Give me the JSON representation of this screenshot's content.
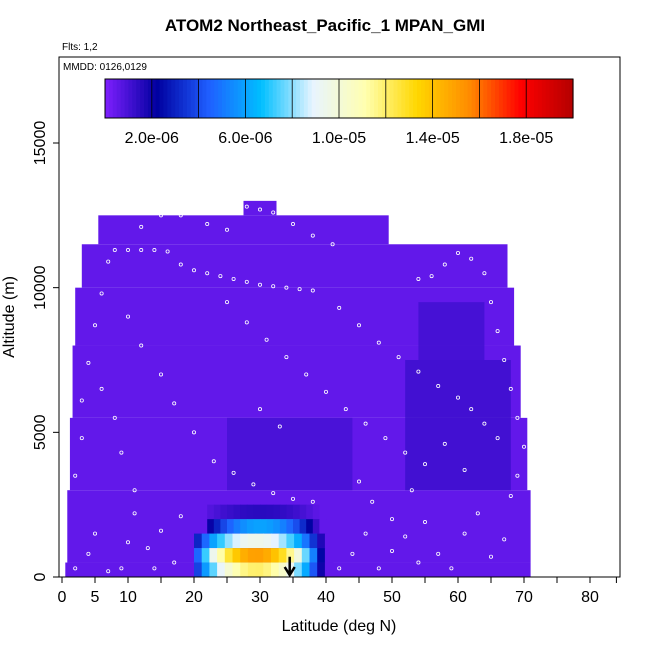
{
  "title": "ATOM2 Northeast_Pacific_1 MPAN_GMI",
  "flights_label": "Flts: 1,2",
  "dates_label": "MMDD: 0126,0129",
  "chart_data": {
    "type": "heatmap",
    "title": "ATOM2 Northeast_Pacific_1 MPAN_GMI",
    "xlabel": "Latitude (deg N)",
    "ylabel": "Altitude (m)",
    "xlim": [
      0,
      84
    ],
    "ylim": [
      0,
      17500
    ],
    "x_ticks": [
      0,
      5,
      10,
      20,
      30,
      40,
      50,
      60,
      70,
      80
    ],
    "y_ticks": [
      0,
      5000,
      10000,
      15000
    ],
    "y_tick_labels": [
      "0",
      "5000",
      "10000",
      "15000"
    ],
    "colorbar": {
      "colors": [
        "#7f1fff",
        "#0000a0",
        "#1f5fff",
        "#00bfff",
        "#e8f4ff",
        "#ffffb0",
        "#ffd700",
        "#ff8c00",
        "#ff0000",
        "#b40000"
      ],
      "min": 0,
      "max": 2e-05,
      "tick_values": [
        2e-06,
        6e-06,
        1e-05,
        1.4e-05,
        1.8e-05
      ],
      "tick_labels": [
        "2.0e-06",
        "6.0e-06",
        "1.0e-05",
        "1.4e-05",
        "1.8e-05"
      ]
    },
    "background_value": 5e-07,
    "envelope": [
      {
        "alt": [
          0,
          500
        ],
        "lat": [
          0.5,
          71
        ]
      },
      {
        "alt": [
          500,
          3000
        ],
        "lat": [
          0.8,
          71
        ]
      },
      {
        "alt": [
          3000,
          5500
        ],
        "lat": [
          1.2,
          70.5
        ]
      },
      {
        "alt": [
          5500,
          8000
        ],
        "lat": [
          1.6,
          69.5
        ]
      },
      {
        "alt": [
          8000,
          10000
        ],
        "lat": [
          2,
          68.5
        ]
      },
      {
        "alt": [
          10000,
          11500
        ],
        "lat": [
          3,
          67.5
        ]
      },
      {
        "alt": [
          11500,
          12500
        ],
        "lat": [
          5.5,
          49.5
        ]
      },
      {
        "alt": [
          12500,
          13000
        ],
        "lat": [
          27.5,
          32.5
        ]
      }
    ],
    "plume_cells": [
      {
        "lat": [
          22,
          40
        ],
        "alt": [
          2000,
          2500
        ],
        "value": 1.5e-06
      },
      {
        "lat": [
          22,
          40
        ],
        "alt": [
          1500,
          2000
        ],
        "value": 6e-06
      },
      {
        "lat": [
          20,
          41
        ],
        "alt": [
          1000,
          1500
        ],
        "value": 9.5e-06
      },
      {
        "lat": [
          20,
          41
        ],
        "alt": [
          500,
          1000
        ],
        "value": 1.5e-05
      },
      {
        "lat": [
          20,
          41
        ],
        "alt": [
          0,
          500
        ],
        "value": 1.2e-05
      }
    ],
    "observations": [
      [
        2,
        300
      ],
      [
        4,
        800
      ],
      [
        5,
        1500
      ],
      [
        7,
        200
      ],
      [
        9,
        300
      ],
      [
        10,
        1200
      ],
      [
        11,
        2200
      ],
      [
        13,
        1000
      ],
      [
        14,
        300
      ],
      [
        15,
        1600
      ],
      [
        17,
        500
      ],
      [
        18,
        2100
      ],
      [
        42,
        300
      ],
      [
        44,
        800
      ],
      [
        46,
        1500
      ],
      [
        48,
        300
      ],
      [
        50,
        900
      ],
      [
        52,
        1400
      ],
      [
        54,
        500
      ],
      [
        55,
        1900
      ],
      [
        57,
        800
      ],
      [
        59,
        300
      ],
      [
        61,
        1500
      ],
      [
        63,
        2200
      ],
      [
        65,
        700
      ],
      [
        67,
        1300
      ],
      [
        68,
        2800
      ],
      [
        69,
        3500
      ],
      [
        70,
        4500
      ],
      [
        69,
        5500
      ],
      [
        68,
        6500
      ],
      [
        67,
        7500
      ],
      [
        66,
        8500
      ],
      [
        65,
        9500
      ],
      [
        64,
        10500
      ],
      [
        62,
        11000
      ],
      [
        60,
        11200
      ],
      [
        58,
        10800
      ],
      [
        56,
        10400
      ],
      [
        54,
        10300
      ],
      [
        2,
        3500
      ],
      [
        3,
        4800
      ],
      [
        3,
        6100
      ],
      [
        4,
        7400
      ],
      [
        5,
        8700
      ],
      [
        6,
        9800
      ],
      [
        7,
        10900
      ],
      [
        8,
        11300
      ],
      [
        10,
        11300
      ],
      [
        12,
        11300
      ],
      [
        14,
        11300
      ],
      [
        16,
        11250
      ],
      [
        18,
        10800
      ],
      [
        20,
        10600
      ],
      [
        22,
        10500
      ],
      [
        24,
        10400
      ],
      [
        26,
        10300
      ],
      [
        28,
        10200
      ],
      [
        30,
        10100
      ],
      [
        32,
        10050
      ],
      [
        34,
        10000
      ],
      [
        36,
        9950
      ],
      [
        38,
        9900
      ],
      [
        12,
        12100
      ],
      [
        15,
        12500
      ],
      [
        18,
        12500
      ],
      [
        22,
        12200
      ],
      [
        25,
        12000
      ],
      [
        28,
        12800
      ],
      [
        30,
        12700
      ],
      [
        32,
        12600
      ],
      [
        35,
        12200
      ],
      [
        38,
        11800
      ],
      [
        41,
        11500
      ],
      [
        10,
        9000
      ],
      [
        12,
        8000
      ],
      [
        15,
        7000
      ],
      [
        17,
        6000
      ],
      [
        20,
        5000
      ],
      [
        23,
        4000
      ],
      [
        26,
        3600
      ],
      [
        29,
        3200
      ],
      [
        32,
        2900
      ],
      [
        35,
        2700
      ],
      [
        38,
        2600
      ],
      [
        25,
        9500
      ],
      [
        28,
        8800
      ],
      [
        31,
        8200
      ],
      [
        34,
        7600
      ],
      [
        37,
        7000
      ],
      [
        40,
        6400
      ],
      [
        43,
        5800
      ],
      [
        46,
        5300
      ],
      [
        49,
        4800
      ],
      [
        52,
        4300
      ],
      [
        55,
        3900
      ],
      [
        42,
        9300
      ],
      [
        45,
        8700
      ],
      [
        48,
        8100
      ],
      [
        51,
        7600
      ],
      [
        54,
        7100
      ],
      [
        57,
        6600
      ],
      [
        60,
        6200
      ],
      [
        62,
        5800
      ],
      [
        64,
        5300
      ],
      [
        66,
        4800
      ],
      [
        6,
        6500
      ],
      [
        8,
        5500
      ],
      [
        9,
        4300
      ],
      [
        11,
        3000
      ],
      [
        30,
        5800
      ],
      [
        33,
        5200
      ],
      [
        45,
        3300
      ],
      [
        47,
        2600
      ],
      [
        50,
        2000
      ],
      [
        53,
        3000
      ],
      [
        58,
        4600
      ],
      [
        61,
        3700
      ]
    ],
    "arrow": {
      "lat": 34.5,
      "alt_from": 700,
      "alt_to": 0
    }
  }
}
